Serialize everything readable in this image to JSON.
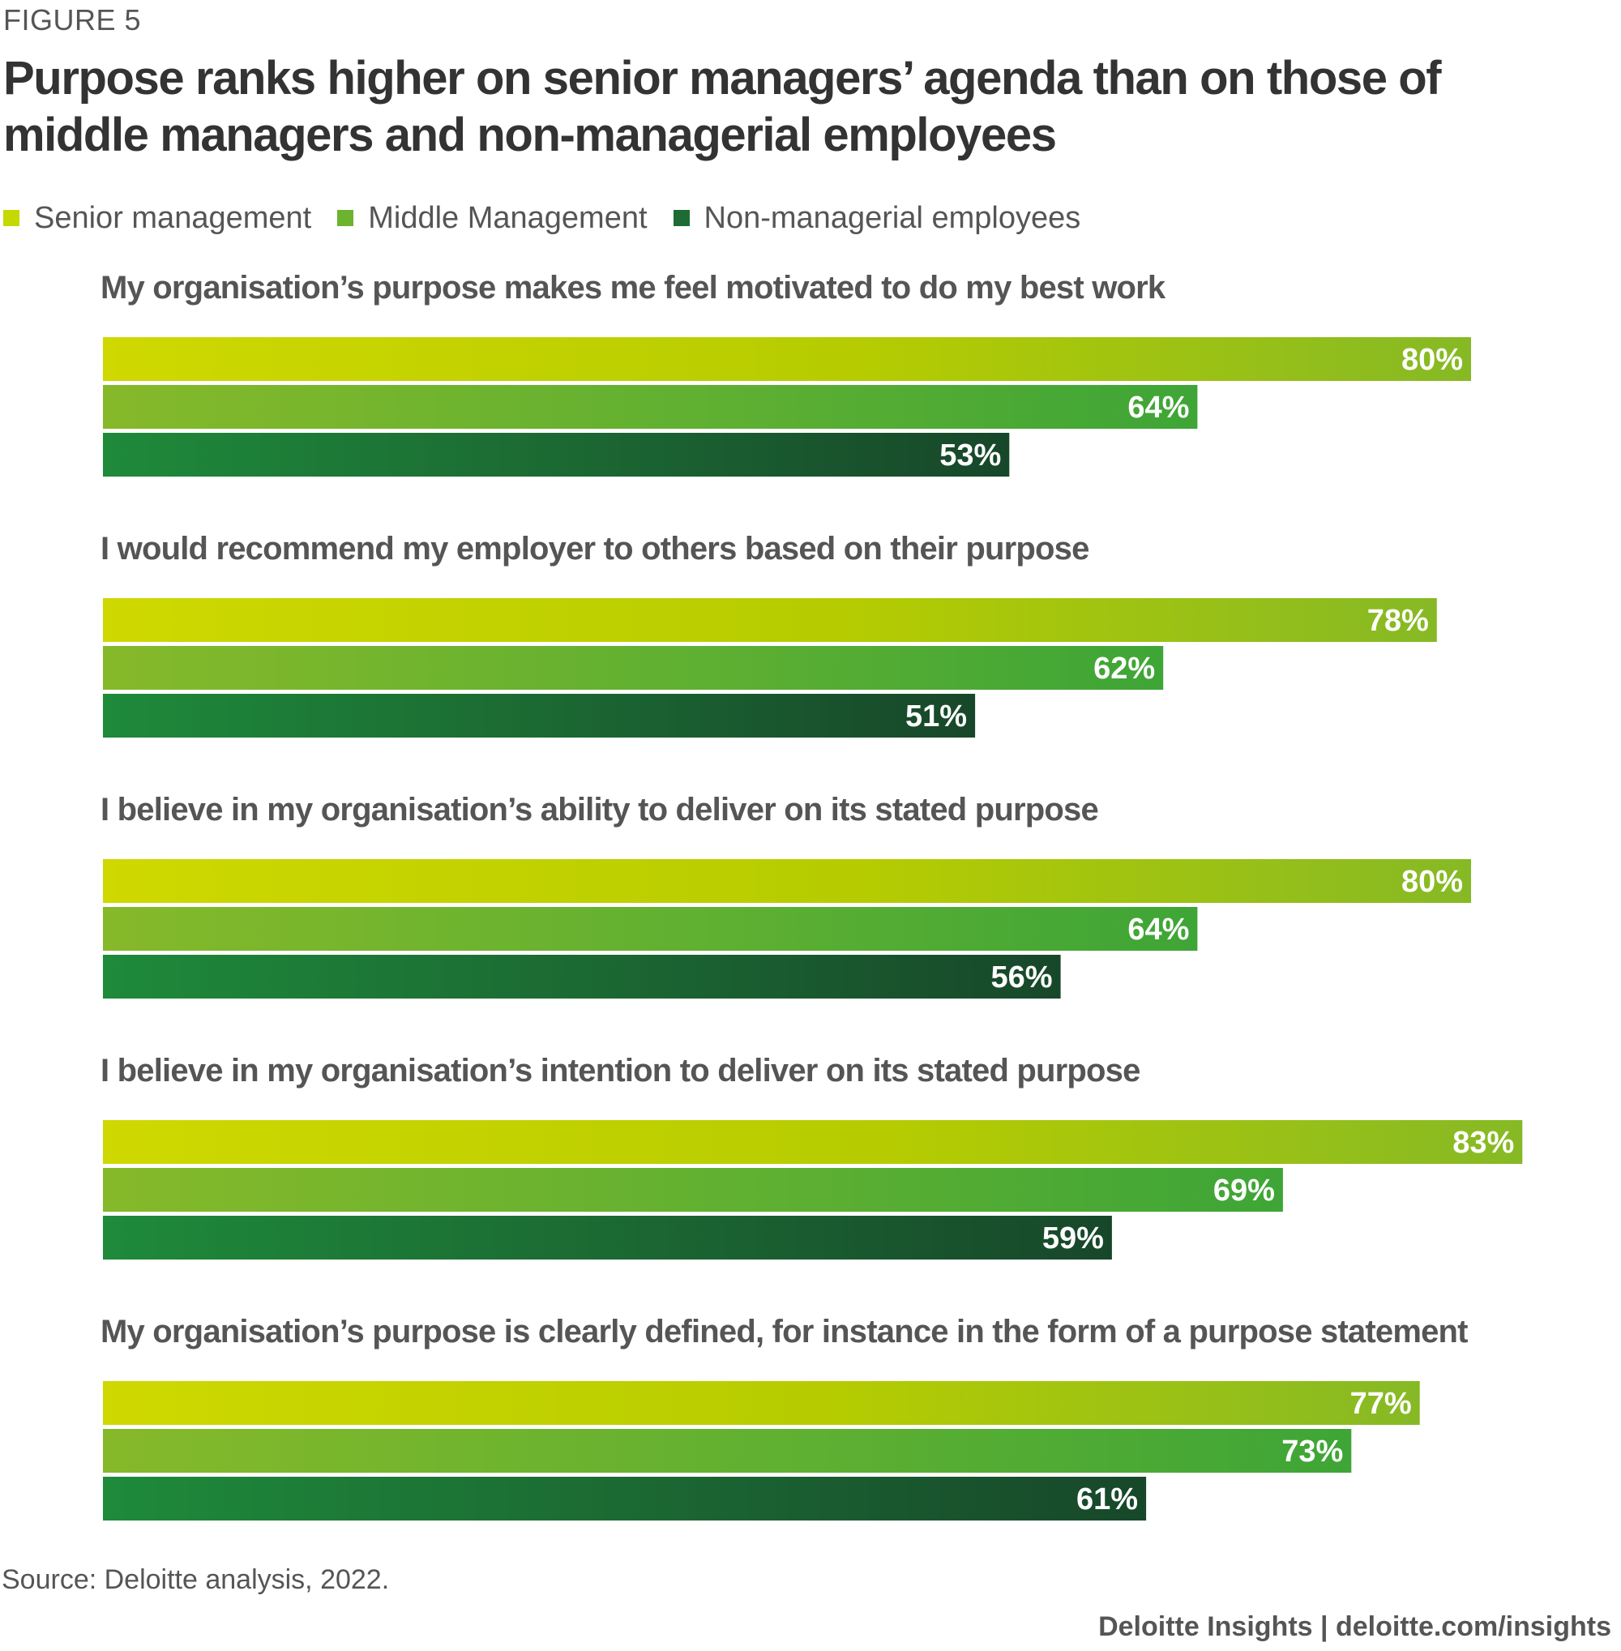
{
  "figure_label": "FIGURE 5",
  "title": "Purpose ranks higher on senior managers’ agenda than on those of middle managers and non-managerial employees",
  "source": "Source: Deloitte analysis, 2022.",
  "credit": "Deloitte Insights | deloitte.com/insights",
  "colors": {
    "senior": "#c5d800",
    "middle": "#6cb32e",
    "non_managerial": "#1e6b35"
  },
  "chart_data": {
    "type": "bar",
    "orientation": "horizontal",
    "title": "Purpose ranks higher on senior managers’ agenda than on those of middle managers and non-managerial employees",
    "categories": [
      "My organisation’s purpose makes me feel motivated to do my best work",
      "I would recommend my employer to others based on their purpose",
      "I believe in my organisation’s ability to deliver on its stated purpose",
      "I believe in my organisation’s intention to deliver on its stated purpose",
      "My organisation’s purpose is clearly defined, for instance in the form of a purpose statement"
    ],
    "series": [
      {
        "name": "Senior management",
        "values": [
          80,
          78,
          80,
          83,
          77
        ],
        "labels": [
          "80%",
          "78%",
          "80%",
          "83%",
          "77%"
        ]
      },
      {
        "name": "Middle Management",
        "values": [
          64,
          62,
          64,
          69,
          73
        ],
        "labels": [
          "64%",
          "62%",
          "64%",
          "69%",
          "73%"
        ]
      },
      {
        "name": "Non-managerial employees",
        "values": [
          53,
          51,
          56,
          59,
          61
        ],
        "labels": [
          "53%",
          "51%",
          "56%",
          "59%",
          "61%"
        ]
      }
    ],
    "xlim": [
      0,
      100
    ],
    "unit": "%",
    "legend": "top-left",
    "grid": false,
    "xlabel": "",
    "ylabel": ""
  }
}
